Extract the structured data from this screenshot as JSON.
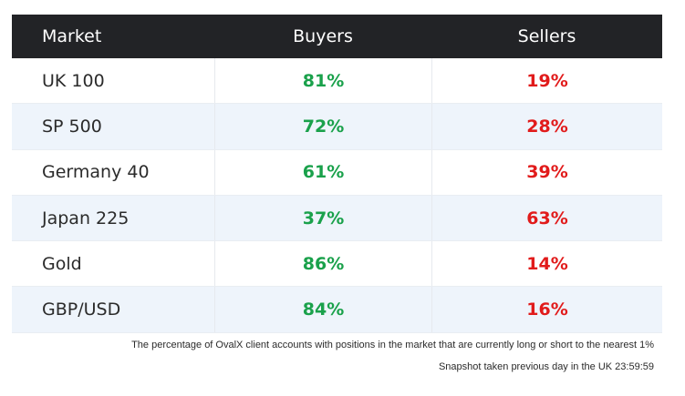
{
  "table": {
    "headers": {
      "market": "Market",
      "buyers": "Buyers",
      "sellers": "Sellers"
    },
    "rows": [
      {
        "market": "UK 100",
        "buyers": "81%",
        "sellers": "19%"
      },
      {
        "market": "SP 500",
        "buyers": "72%",
        "sellers": "28%"
      },
      {
        "market": "Germany 40",
        "buyers": "61%",
        "sellers": "39%"
      },
      {
        "market": "Japan 225",
        "buyers": "37%",
        "sellers": "63%"
      },
      {
        "market": "Gold",
        "buyers": "86%",
        "sellers": "14%"
      },
      {
        "market": "GBP/USD",
        "buyers": "84%",
        "sellers": "16%"
      }
    ]
  },
  "footnotes": {
    "description": "The percentage of OvalX client accounts with positions in the market that are currently long or short to the nearest 1%",
    "snapshot": "Snapshot taken previous day in the UK 23:59:59"
  },
  "colors": {
    "header_bg": "#222326",
    "buyers": "#1aa14b",
    "sellers": "#e11b1b",
    "row_alt_bg": "#eef4fb"
  }
}
